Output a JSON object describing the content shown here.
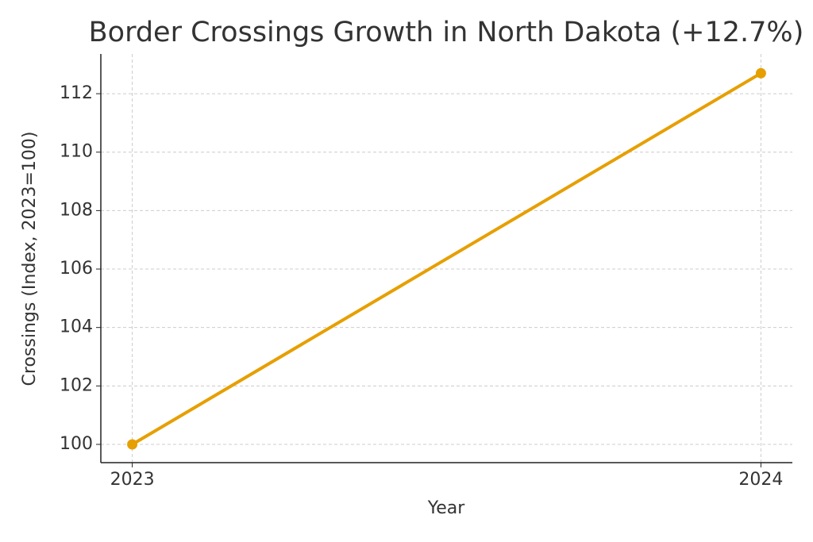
{
  "chart_data": {
    "type": "line",
    "title": "Border Crossings Growth in North Dakota (+12.7%)",
    "x_label": "Year",
    "y_label": "Crossings (Index, 2023=100)",
    "x": [
      2023,
      2024
    ],
    "series": [
      {
        "name": "North Dakota",
        "color": "#e69f00",
        "values": [
          100,
          112.7
        ]
      }
    ],
    "xlim": [
      2022.95,
      2024.05
    ],
    "xticks": [
      2023,
      2024
    ],
    "ylim": [
      99.375,
      113.36
    ],
    "yticks": [
      100,
      102,
      104,
      106,
      108,
      110,
      112
    ],
    "grid": true
  }
}
